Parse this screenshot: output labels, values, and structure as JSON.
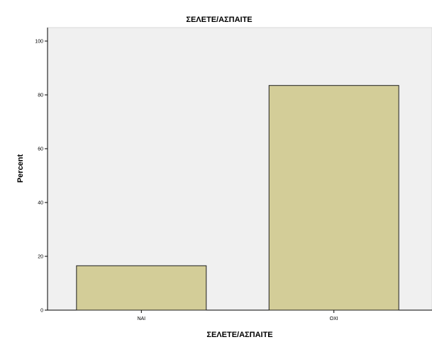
{
  "chart_data": {
    "type": "bar",
    "title": "ΣΕΛΕΤΕ/ΑΣΠΑΙΤΕ",
    "xlabel": "ΣΕΛΕΤΕ/ΑΣΠΑΙΤΕ",
    "ylabel": "Percent",
    "categories": [
      "ΝΑΙ",
      "ΟΧΙ"
    ],
    "values": [
      16.5,
      83.5
    ],
    "ylim": [
      0,
      105
    ],
    "yticks": [
      "0",
      "20",
      "40",
      "60",
      "80",
      "100"
    ],
    "grid": false,
    "colors": {
      "bar_fill": "#d3cd98",
      "bar_stroke": "#1f1f1f",
      "plot_background": "#f0f0f0",
      "axis": "#000000"
    }
  }
}
